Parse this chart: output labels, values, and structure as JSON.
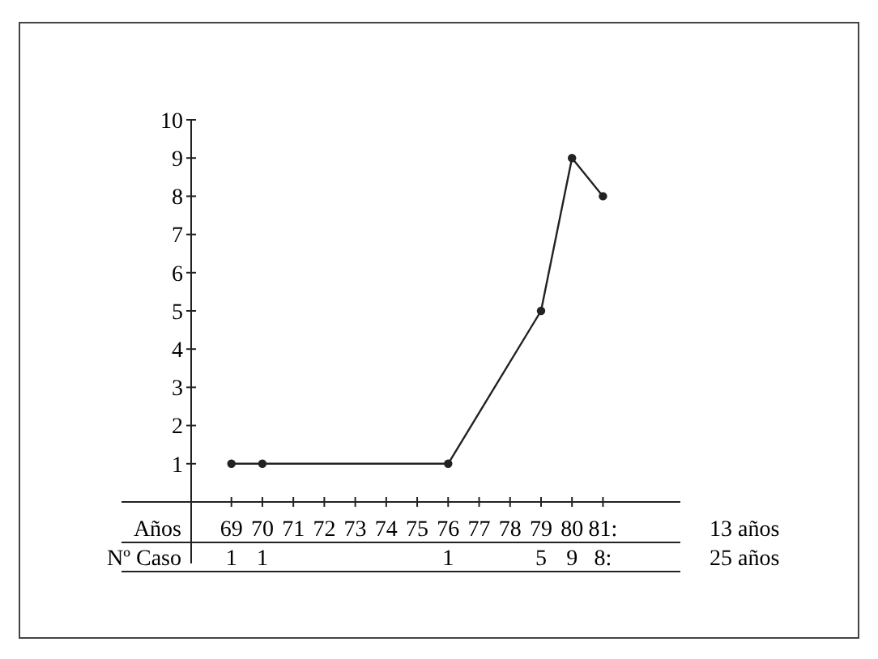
{
  "chart_data": {
    "type": "line",
    "xlabel": "Años",
    "x": [
      69,
      70,
      76,
      79,
      80,
      81
    ],
    "values": [
      1,
      1,
      1,
      5,
      9,
      8
    ],
    "color": "#222222",
    "marker": "circle",
    "xlim": [
      65.45,
      83.5
    ],
    "xticks": [
      69,
      70,
      71,
      72,
      73,
      74,
      75,
      76,
      77,
      78,
      79,
      80,
      {
        "value": 81,
        "label": "81:"
      }
    ],
    "ylim": [
      0,
      10
    ],
    "yticks": [
      1,
      2,
      3,
      4,
      5,
      6,
      7,
      8,
      9,
      10
    ],
    "annotations": [
      "Nº Caso",
      "13 años",
      "25 años",
      "1",
      "1",
      "1",
      "5",
      "9",
      "8:"
    ]
  }
}
